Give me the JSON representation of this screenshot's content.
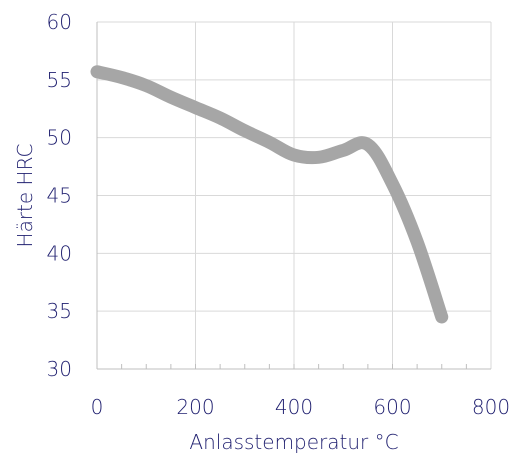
{
  "chart_data": {
    "type": "line",
    "title": "",
    "xlabel": "Anlasstemperatur °C",
    "ylabel": "Härte HRC",
    "xlim": [
      0,
      800
    ],
    "ylim": [
      30,
      60
    ],
    "x_ticks": [
      "0",
      "200",
      "400",
      "600",
      "800"
    ],
    "y_ticks": [
      "30",
      "35",
      "40",
      "45",
      "50",
      "55",
      "60"
    ],
    "x_tick_values": [
      0,
      200,
      400,
      600,
      800
    ],
    "y_tick_values": [
      30,
      35,
      40,
      45,
      50,
      55,
      60
    ],
    "grid": true,
    "legend": "none",
    "series": [
      {
        "x": [
          0,
          50,
          100,
          150,
          200,
          250,
          300,
          350,
          400,
          450,
          500,
          550,
          600,
          650,
          700
        ],
        "y": [
          55.7,
          55.2,
          54.5,
          53.5,
          52.6,
          51.7,
          50.6,
          49.6,
          48.5,
          48.3,
          48.9,
          49.4,
          46.0,
          41.0,
          34.5
        ],
        "color": "#a6a6a6"
      }
    ]
  },
  "colors": {
    "axis_text": "#1f1f6f",
    "grid": "#d9d9d9",
    "axis_line": "#bfbfbf",
    "series": "#a6a6a6"
  }
}
